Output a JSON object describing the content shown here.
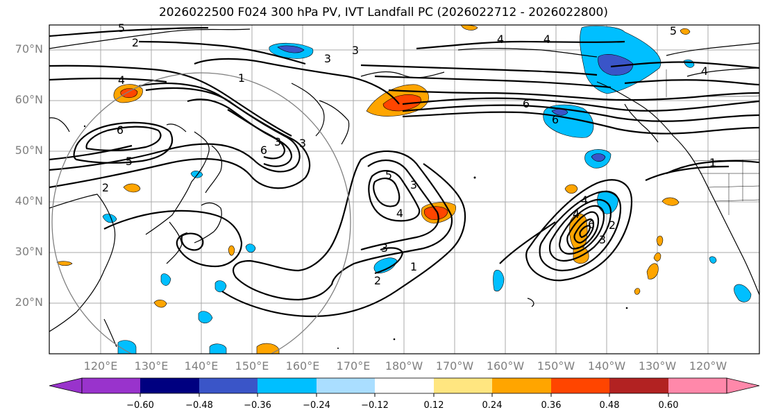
{
  "title": "2026022500 F024 300 hPa PV, IVT Landfall PC (2026022712 - 2026022800)",
  "lat_labels": [
    "70°N",
    "60°N",
    "50°N",
    "40°N",
    "30°N",
    "20°N"
  ],
  "lon_labels": [
    "120°E",
    "130°E",
    "140°E",
    "150°E",
    "160°E",
    "170°E",
    "180°W",
    "170°W",
    "160°W",
    "150°W",
    "140°W",
    "130°W",
    "120°W"
  ],
  "contour_labels": [
    "5",
    "2",
    "3",
    "4",
    "3",
    "4",
    "5",
    "1",
    "4",
    "6",
    "5",
    "6",
    "2",
    "6",
    "3",
    "3",
    "5",
    "3",
    "4",
    "3",
    "2",
    "1",
    "6",
    "4",
    "3",
    "2",
    "6",
    "1",
    "4",
    "4"
  ],
  "colorbar": {
    "ticks": [
      "−0.60",
      "−0.48",
      "−0.36",
      "−0.24",
      "−0.12",
      "0.12",
      "0.24",
      "0.36",
      "0.48",
      "0.60"
    ],
    "colors": [
      "#9933cc",
      "#000080",
      "#3a55c8",
      "#00bfff",
      "#aadeff",
      "#ffffff",
      "#ffe680",
      "#ffa500",
      "#ff4500",
      "#b22222",
      "#ff88aa"
    ]
  }
}
